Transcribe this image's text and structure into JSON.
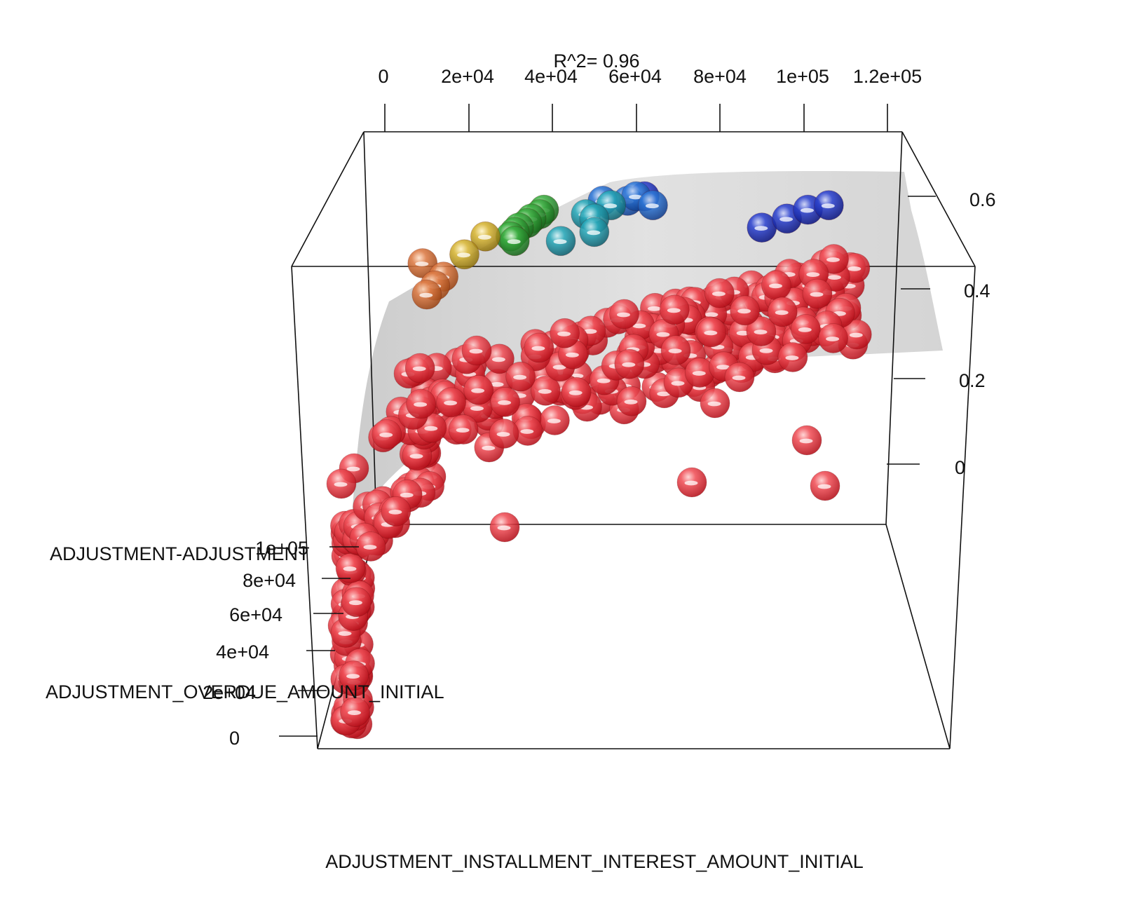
{
  "chart_data": {
    "type": "scatter",
    "subtype": "3d-scatter-with-fitted-surface",
    "title": "R^2= 0.96",
    "x_axis": {
      "label": "ADJUSTMENT_INSTALLMENT_INTEREST_AMOUNT_INITIAL",
      "ticks": [
        "0",
        "2e+04",
        "4e+04",
        "6e+04",
        "8e+04",
        "1e+05",
        "1.2e+05"
      ],
      "range": [
        0,
        120000
      ]
    },
    "z_axis": {
      "label": "ADJUSTMENT-ADJUSTMENT",
      "ticks": [
        "0",
        "0.2",
        "0.4",
        "0.6"
      ],
      "range": [
        0,
        0.6
      ]
    },
    "y_axis": {
      "label": "ADJUSTMENT_OVERDUE_AMOUNT_INITIAL",
      "ticks": [
        "0",
        "2e+04",
        "4e+04",
        "6e+04",
        "8e+04",
        "1e+05"
      ],
      "range": [
        0,
        100000
      ]
    },
    "surface": {
      "color": "#c8c8c8",
      "opacity": 0.75
    },
    "colors": {
      "red": "#e8202a",
      "orange": "#d2662c",
      "gold": "#c8a21e",
      "green": "#2f9a34",
      "teal": "#1f9aa8",
      "blue": "#1e64c8",
      "navy": "#1c2fb8"
    },
    "colored_points": [
      {
        "x": 62000,
        "z": 0.6,
        "y": 100000,
        "color": "navy"
      },
      {
        "x": 58000,
        "z": 0.59,
        "y": 100000,
        "color": "blue"
      },
      {
        "x": 60000,
        "z": 0.6,
        "y": 100000,
        "color": "blue"
      },
      {
        "x": 64000,
        "z": 0.58,
        "y": 100000,
        "color": "blue"
      },
      {
        "x": 52000,
        "z": 0.59,
        "y": 100000,
        "color": "blue"
      },
      {
        "x": 54000,
        "z": 0.58,
        "y": 100000,
        "color": "teal"
      },
      {
        "x": 48000,
        "z": 0.56,
        "y": 100000,
        "color": "teal"
      },
      {
        "x": 50000,
        "z": 0.55,
        "y": 100000,
        "color": "teal"
      },
      {
        "x": 50000,
        "z": 0.52,
        "y": 100000,
        "color": "teal"
      },
      {
        "x": 42000,
        "z": 0.5,
        "y": 100000,
        "color": "teal"
      },
      {
        "x": 38000,
        "z": 0.57,
        "y": 100000,
        "color": "green"
      },
      {
        "x": 37000,
        "z": 0.56,
        "y": 100000,
        "color": "green"
      },
      {
        "x": 35000,
        "z": 0.55,
        "y": 100000,
        "color": "green"
      },
      {
        "x": 34000,
        "z": 0.54,
        "y": 100000,
        "color": "green"
      },
      {
        "x": 32000,
        "z": 0.53,
        "y": 100000,
        "color": "green"
      },
      {
        "x": 31000,
        "z": 0.52,
        "y": 100000,
        "color": "green"
      },
      {
        "x": 30000,
        "z": 0.51,
        "y": 100000,
        "color": "green"
      },
      {
        "x": 31000,
        "z": 0.5,
        "y": 100000,
        "color": "green"
      },
      {
        "x": 24000,
        "z": 0.51,
        "y": 100000,
        "color": "gold"
      },
      {
        "x": 19000,
        "z": 0.47,
        "y": 100000,
        "color": "gold"
      },
      {
        "x": 9000,
        "z": 0.45,
        "y": 100000,
        "color": "orange"
      },
      {
        "x": 14000,
        "z": 0.42,
        "y": 100000,
        "color": "orange"
      },
      {
        "x": 12000,
        "z": 0.4,
        "y": 100000,
        "color": "orange"
      },
      {
        "x": 10000,
        "z": 0.38,
        "y": 100000,
        "color": "orange"
      },
      {
        "x": 90000,
        "z": 0.53,
        "y": 100000,
        "color": "navy"
      },
      {
        "x": 96000,
        "z": 0.55,
        "y": 100000,
        "color": "navy"
      },
      {
        "x": 101000,
        "z": 0.57,
        "y": 100000,
        "color": "navy"
      },
      {
        "x": 106000,
        "z": 0.58,
        "y": 100000,
        "color": "navy"
      }
    ]
  }
}
